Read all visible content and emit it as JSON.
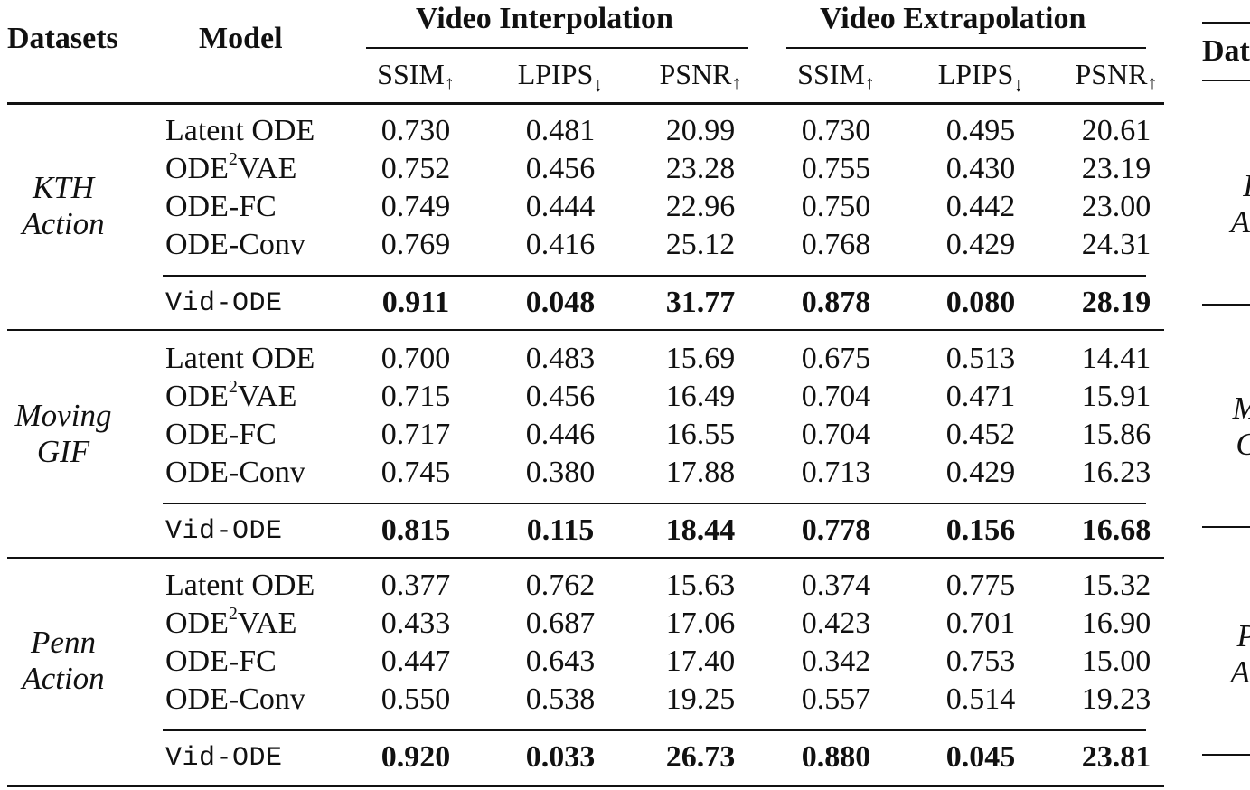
{
  "headers": {
    "datasets": "Datasets",
    "model": "Model",
    "interpolation": "Video Interpolation",
    "extrapolation": "Video Extrapolation",
    "metrics": [
      {
        "name": "SSIM",
        "arrow": "↑"
      },
      {
        "name": "LPIPS",
        "arrow": "↓"
      },
      {
        "name": "PSNR",
        "arrow": "↑"
      },
      {
        "name": "SSIM",
        "arrow": "↑"
      },
      {
        "name": "LPIPS",
        "arrow": "↓"
      },
      {
        "name": "PSNR",
        "arrow": "↑"
      }
    ]
  },
  "groups": [
    {
      "dataset_line1": "KTH",
      "dataset_line2": "Action",
      "rows": [
        {
          "model": "Latent ODE",
          "values": [
            "0.730",
            "0.481",
            "20.99",
            "0.730",
            "0.495",
            "20.61"
          ]
        },
        {
          "model_pre": "ODE",
          "model_sup": "2",
          "model_post": "VAE",
          "values": [
            "0.752",
            "0.456",
            "23.28",
            "0.755",
            "0.430",
            "23.19"
          ]
        },
        {
          "model": "ODE-FC",
          "values": [
            "0.749",
            "0.444",
            "22.96",
            "0.750",
            "0.442",
            "23.00"
          ]
        },
        {
          "model": "ODE-Conv",
          "values": [
            "0.769",
            "0.416",
            "25.12",
            "0.768",
            "0.429",
            "24.31"
          ]
        }
      ],
      "ours": {
        "model": "Vid-ODE",
        "values": [
          "0.911",
          "0.048",
          "31.77",
          "0.878",
          "0.080",
          "28.19"
        ]
      }
    },
    {
      "dataset_line1": "Moving",
      "dataset_line2": "GIF",
      "rows": [
        {
          "model": "Latent ODE",
          "values": [
            "0.700",
            "0.483",
            "15.69",
            "0.675",
            "0.513",
            "14.41"
          ]
        },
        {
          "model_pre": "ODE",
          "model_sup": "2",
          "model_post": "VAE",
          "values": [
            "0.715",
            "0.456",
            "16.49",
            "0.704",
            "0.471",
            "15.91"
          ]
        },
        {
          "model": "ODE-FC",
          "values": [
            "0.717",
            "0.446",
            "16.55",
            "0.704",
            "0.452",
            "15.86"
          ]
        },
        {
          "model": "ODE-Conv",
          "values": [
            "0.745",
            "0.380",
            "17.88",
            "0.713",
            "0.429",
            "16.23"
          ]
        }
      ],
      "ours": {
        "model": "Vid-ODE",
        "values": [
          "0.815",
          "0.115",
          "18.44",
          "0.778",
          "0.156",
          "16.68"
        ]
      }
    },
    {
      "dataset_line1": "Penn",
      "dataset_line2": "Action",
      "rows": [
        {
          "model": "Latent ODE",
          "values": [
            "0.377",
            "0.762",
            "15.63",
            "0.374",
            "0.775",
            "15.32"
          ]
        },
        {
          "model_pre": "ODE",
          "model_sup": "2",
          "model_post": "VAE",
          "values": [
            "0.433",
            "0.687",
            "17.06",
            "0.423",
            "0.701",
            "16.90"
          ]
        },
        {
          "model": "ODE-FC",
          "values": [
            "0.447",
            "0.643",
            "17.40",
            "0.342",
            "0.753",
            "15.00"
          ]
        },
        {
          "model": "ODE-Conv",
          "values": [
            "0.550",
            "0.538",
            "19.25",
            "0.557",
            "0.514",
            "19.23"
          ]
        }
      ],
      "ours": {
        "model": "Vid-ODE",
        "values": [
          "0.920",
          "0.033",
          "26.73",
          "0.880",
          "0.045",
          "23.81"
        ]
      }
    }
  ],
  "clipped_neighbor": {
    "header": "Dat",
    "labels": [
      [
        "K",
        "Ac"
      ],
      [
        "Mo",
        "G"
      ],
      [
        "Pe",
        "Ac"
      ]
    ]
  }
}
